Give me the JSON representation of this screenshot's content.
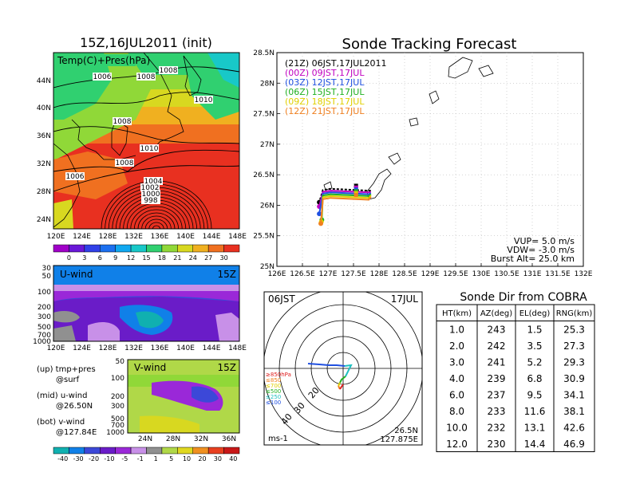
{
  "map_panel": {
    "title": "15Z,16JUL2011 (init)",
    "legend_text": "Temp(C)+Pres(hPa)",
    "lat_labels": [
      "44N",
      "40N",
      "36N",
      "32N",
      "28N",
      "24N"
    ],
    "lon_labels": [
      "120E",
      "124E",
      "128E",
      "132E",
      "136E",
      "140E",
      "144E",
      "148E"
    ],
    "isobar_labels": [
      "1006",
      "1008",
      "1008",
      "1010",
      "1008",
      "1010",
      "1008",
      "1006",
      "1004",
      "1002",
      "1000",
      "998"
    ],
    "colorbar_labels": [
      "0",
      "3",
      "6",
      "9",
      "12",
      "15",
      "18",
      "21",
      "24",
      "27",
      "30"
    ]
  },
  "u_panel": {
    "label": "U-wind",
    "time": "15Z",
    "pressure_labels": [
      "30",
      "50",
      "100",
      "200",
      "300",
      "500",
      "700",
      "1000"
    ],
    "lon_labels": [
      "120E",
      "124E",
      "128E",
      "132E",
      "136E",
      "140E",
      "144E",
      "148E"
    ]
  },
  "v_panel": {
    "label": "V-wind",
    "time": "15Z",
    "pressure_labels": [
      "50",
      "100",
      "200",
      "300",
      "500",
      "700",
      "1000"
    ],
    "lat_labels": [
      "24N",
      "28N",
      "32N",
      "36N"
    ],
    "colorbar_labels": [
      "-40",
      "-30",
      "-20",
      "-10",
      "-5",
      "-1",
      "1",
      "5",
      "10",
      "20",
      "30",
      "40"
    ]
  },
  "notes": [
    {
      "a": "(up) tmp+pres",
      "b": "@surf"
    },
    {
      "a": "(mid) u-wind",
      "b": "@26.50N"
    },
    {
      "a": "(bot) v-wind",
      "b": "@127.84E"
    }
  ],
  "track": {
    "title": "Sonde Tracking Forecast",
    "lat_labels": [
      "28.5N",
      "28N",
      "27.5N",
      "27N",
      "26.5N",
      "26N",
      "25.5N",
      "25N"
    ],
    "lon_labels": [
      "126E",
      "126.5E",
      "127E",
      "127.5E",
      "128E",
      "128.5E",
      "129E",
      "129.5E",
      "130E",
      "130.5E",
      "131E",
      "131.5E",
      "132E"
    ],
    "legend": [
      {
        "text": "(21Z)  06JST,17JUL2011",
        "color": "#000000"
      },
      {
        "text": "(00Z)  09JST,17JUL",
        "color": "#c000c0"
      },
      {
        "text": "(03Z)  12JST,17JUL",
        "color": "#2050e0"
      },
      {
        "text": "(06Z)  15JST,17JUL",
        "color": "#20b020"
      },
      {
        "text": "(09Z)  18JST,17JUL",
        "color": "#e0d000"
      },
      {
        "text": "(12Z)  21JST,17JUL",
        "color": "#f08020"
      }
    ],
    "info": [
      "VUP= 5.0 m/s",
      "VDW= -3.0 m/s",
      "Burst Alt= 25.0 km"
    ]
  },
  "chart_data": {
    "type": "scatter",
    "title": "Sonde Tracking Forecast",
    "xlabel": "",
    "ylabel": "",
    "xlim": [
      126,
      132
    ],
    "ylim": [
      25,
      28.5
    ],
    "grid": true,
    "launch": {
      "x": 127.84,
      "y": 26.24
    },
    "series": [
      {
        "name": "(21Z)  06JST,17JUL2011",
        "color": "#000000",
        "landing": {
          "x": 126.83,
          "y": 26.05
        }
      },
      {
        "name": "(00Z)  09JST,17JUL",
        "color": "#c000c0",
        "landing": {
          "x": 126.83,
          "y": 25.98
        }
      },
      {
        "name": "(03Z)  12JST,17JUL",
        "color": "#2050e0",
        "landing": {
          "x": 126.83,
          "y": 25.86
        }
      },
      {
        "name": "(06Z)  15JST,17JUL",
        "color": "#20b020",
        "landing": {
          "x": 126.88,
          "y": 25.76
        }
      },
      {
        "name": "(09Z)  18JST,17JUL",
        "color": "#e0d000",
        "landing": {
          "x": 126.87,
          "y": 25.73
        }
      },
      {
        "name": "(12Z)  21JST,17JUL",
        "color": "#f08020",
        "landing": {
          "x": 126.86,
          "y": 25.7
        }
      }
    ]
  },
  "hodo": {
    "time_left": "06JST",
    "date": "17JUL",
    "units": "ms-1",
    "lat": "26.5N",
    "lon": "127.875E",
    "ring_labels": [
      "20",
      "30",
      "40"
    ],
    "level_labels": [
      {
        "text": "≥850hPa",
        "color": "#e02020"
      },
      {
        "text": "≤850",
        "color": "#f08020"
      },
      {
        "text": "≤700",
        "color": "#e0d000"
      },
      {
        "text": "≤500",
        "color": "#20b020"
      },
      {
        "text": "≤250",
        "color": "#20c0c0"
      },
      {
        "text": "≤100",
        "color": "#2050e0"
      }
    ]
  },
  "table": {
    "title": "Sonde Dir from COBRA",
    "headers": [
      "HT(km)",
      "AZ(deg)",
      "EL(deg)",
      "RNG(km)"
    ],
    "rows": [
      [
        "1.0",
        "243",
        "1.5",
        "25.3"
      ],
      [
        "2.0",
        "242",
        "3.5",
        "27.3"
      ],
      [
        "3.0",
        "241",
        "5.2",
        "29.3"
      ],
      [
        "4.0",
        "239",
        "6.8",
        "30.9"
      ],
      [
        "6.0",
        "237",
        "9.5",
        "34.1"
      ],
      [
        "8.0",
        "233",
        "11.6",
        "38.1"
      ],
      [
        "10.0",
        "232",
        "13.1",
        "42.6"
      ],
      [
        "12.0",
        "230",
        "14.4",
        "46.9"
      ]
    ]
  },
  "colors": {
    "map_scale": [
      "#a000c8",
      "#6a18d8",
      "#3040e8",
      "#1c70f0",
      "#10a8f0",
      "#18c8c8",
      "#30d070",
      "#90d838",
      "#d8d820",
      "#f0b020",
      "#f07020",
      "#e83020"
    ],
    "wind_scale": [
      "#10b0b0",
      "#1080e8",
      "#3c48d8",
      "#6a1cc8",
      "#9a28d8",
      "#c890e8",
      "#909090",
      "#b0d848",
      "#e0d820",
      "#f09020",
      "#e84020",
      "#c81818"
    ]
  }
}
